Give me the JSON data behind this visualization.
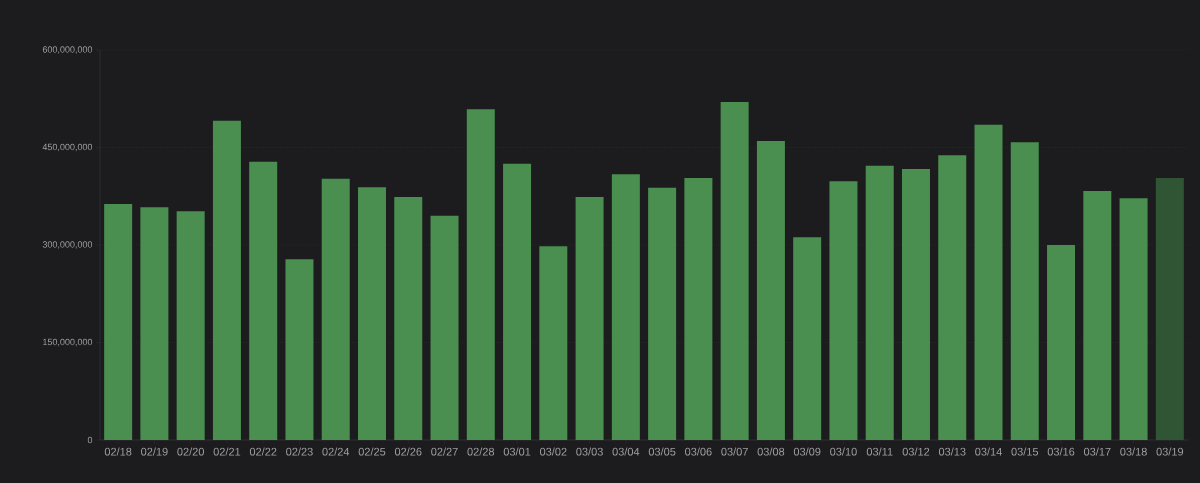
{
  "chart_data": {
    "type": "bar",
    "categories": [
      "02/18",
      "02/19",
      "02/20",
      "02/21",
      "02/22",
      "02/23",
      "02/24",
      "02/25",
      "02/26",
      "02/27",
      "02/28",
      "03/01",
      "03/02",
      "03/03",
      "03/04",
      "03/05",
      "03/06",
      "03/07",
      "03/08",
      "03/09",
      "03/10",
      "03/11",
      "03/12",
      "03/13",
      "03/14",
      "03/15",
      "03/16",
      "03/17",
      "03/18",
      "03/19"
    ],
    "values": [
      363000000,
      358000000,
      352000000,
      491000000,
      428000000,
      278000000,
      402000000,
      389000000,
      374000000,
      345000000,
      509000000,
      425000000,
      298000000,
      374000000,
      409000000,
      388000000,
      403000000,
      520000000,
      460000000,
      312000000,
      398000000,
      422000000,
      417000000,
      438000000,
      485000000,
      458000000,
      300000000,
      383000000,
      372000000,
      403000000
    ],
    "colors": [
      "#4a8f50",
      "#4a8f50",
      "#4a8f50",
      "#4a8f50",
      "#4a8f50",
      "#4a8f50",
      "#4a8f50",
      "#4a8f50",
      "#4a8f50",
      "#4a8f50",
      "#4a8f50",
      "#4a8f50",
      "#4a8f50",
      "#4a8f50",
      "#4a8f50",
      "#4a8f50",
      "#4a8f50",
      "#4a8f50",
      "#4a8f50",
      "#4a8f50",
      "#4a8f50",
      "#4a8f50",
      "#4a8f50",
      "#4a8f50",
      "#4a8f50",
      "#4a8f50",
      "#4a8f50",
      "#4a8f50",
      "#4a8f50",
      "#2f5534"
    ],
    "ylim": [
      0,
      600000000
    ],
    "yticks": [
      {
        "value": 0,
        "label": "0"
      },
      {
        "value": 150000000,
        "label": "150,000,000"
      },
      {
        "value": 300000000,
        "label": "300,000,000"
      },
      {
        "value": 450000000,
        "label": "450,000,000"
      },
      {
        "value": 600000000,
        "label": "600,000,000"
      }
    ],
    "grid": "y"
  }
}
